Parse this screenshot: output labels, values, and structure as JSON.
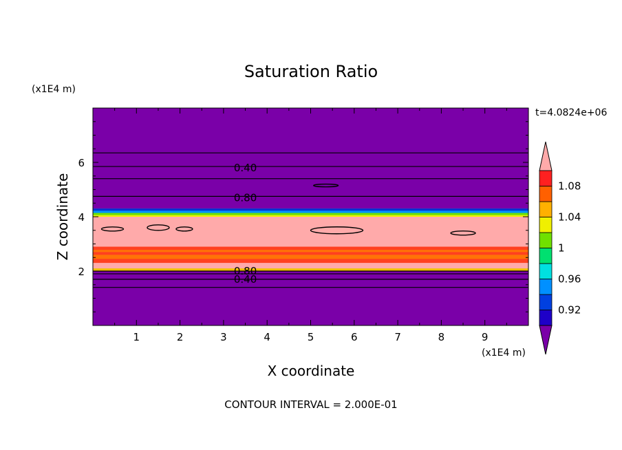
{
  "chart_data": {
    "type": "heatmap",
    "title": "Saturation Ratio",
    "xlabel": "X coordinate",
    "ylabel": "Z coordinate",
    "x_unit": "(x1E4 m)",
    "y_unit": "(x1E4 m)",
    "time_label": "t=4.0824e+06",
    "footer": "CONTOUR INTERVAL = 2.000E-01",
    "xlim": [
      0,
      10
    ],
    "ylim": [
      0,
      8
    ],
    "x_ticks": [
      "1",
      "2",
      "3",
      "4",
      "5",
      "6",
      "7",
      "8",
      "9"
    ],
    "y_ticks": [
      "2",
      "4",
      "6"
    ],
    "colorbar": {
      "labels": [
        "0.92",
        "0.96",
        "1",
        "1.04",
        "1.08"
      ],
      "label_values": [
        0.92,
        0.96,
        1.0,
        1.04,
        1.08
      ],
      "levels": [
        0.9,
        0.92,
        0.94,
        0.96,
        0.98,
        1.0,
        1.02,
        1.04,
        1.06,
        1.08,
        1.1
      ],
      "colors": [
        "#7a00a8",
        "#1e00c8",
        "#0040e0",
        "#0090ff",
        "#00e0e0",
        "#00e070",
        "#70e000",
        "#f0f000",
        "#ffb000",
        "#ff6000",
        "#ff2020",
        "#ffaaaa"
      ]
    },
    "bands": [
      {
        "z_range": [
          0,
          2.0
        ],
        "value": "<0.90",
        "color": "#7a00a8"
      },
      {
        "z_range": [
          2.0,
          2.1
        ],
        "value": "1.02-1.06",
        "color": "#f0c000"
      },
      {
        "z_range": [
          2.1,
          2.3
        ],
        "value": ">1.10",
        "color": "#ffaaaa"
      },
      {
        "z_range": [
          2.3,
          2.9
        ],
        "value": "1.06-1.10",
        "color": "#ff4020"
      },
      {
        "z_range": [
          2.9,
          4.0
        ],
        "value": ">1.10",
        "color": "#ffaaaa"
      },
      {
        "z_range": [
          4.0,
          4.3
        ],
        "value": "0.90-1.10",
        "color": "#00e0e0"
      },
      {
        "z_range": [
          4.3,
          8.0
        ],
        "value": "<0.90",
        "color": "#7a00a8"
      }
    ],
    "contour_labels": [
      {
        "text": "0.40",
        "x": 3.5,
        "z": 5.8
      },
      {
        "text": "0.80",
        "x": 3.5,
        "z": 4.7
      },
      {
        "text": "0.80",
        "x": 3.5,
        "z": 2.0
      },
      {
        "text": "0.40",
        "x": 3.5,
        "z": 1.7
      }
    ]
  }
}
